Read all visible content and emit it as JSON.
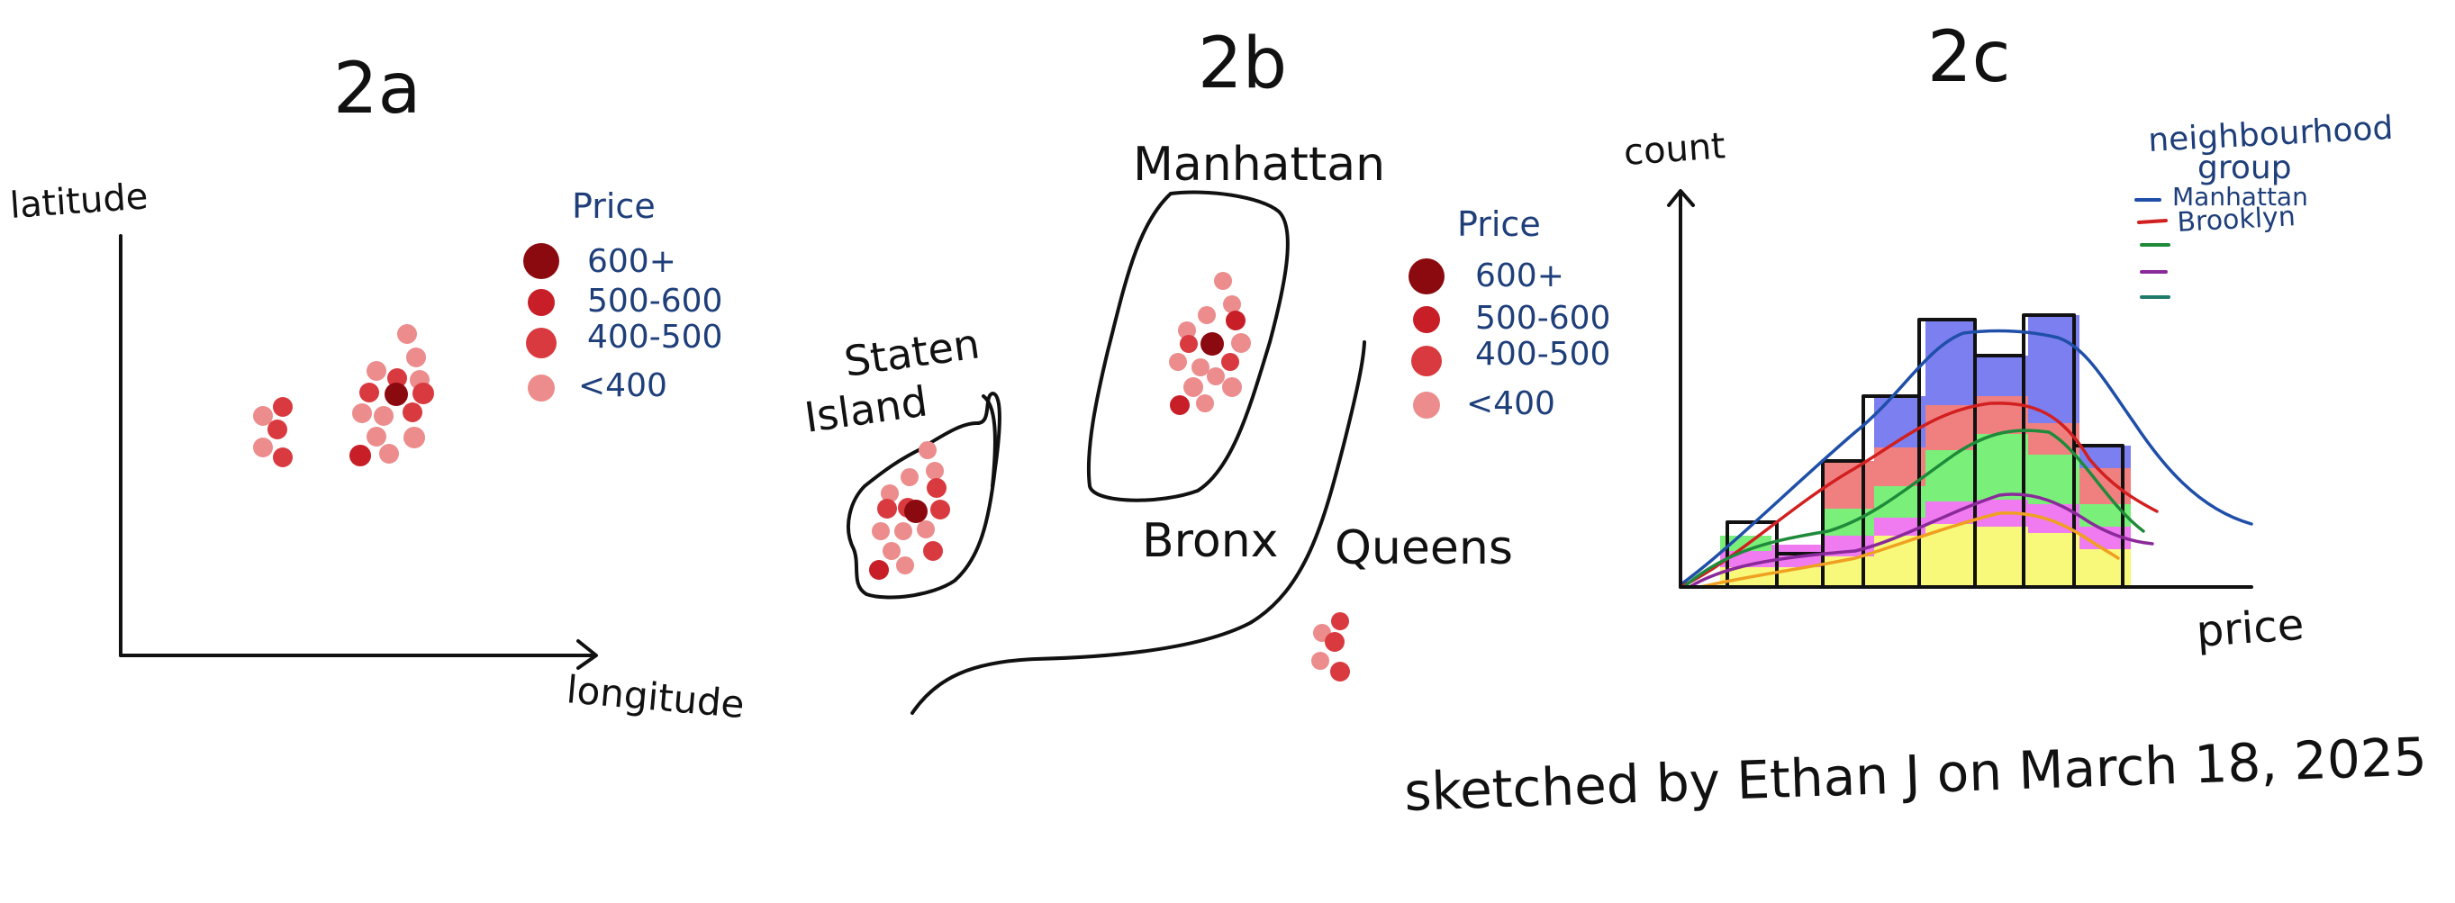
{
  "panel_2a": {
    "title": "2a",
    "ylabel": "latitude",
    "xlabel": "longitude",
    "legend": {
      "title": "Price",
      "items": [
        {
          "label": "600+",
          "color": "#8b0a10"
        },
        {
          "label": "500-600",
          "color": "#c81e28"
        },
        {
          "label": "400-500",
          "color": "#d93a3f"
        },
        {
          "label": "<400",
          "color": "#ec8c8c"
        }
      ]
    }
  },
  "panel_2b": {
    "title": "2b",
    "regions": {
      "manhattan": "Manhattan",
      "staten_line1": "Staten",
      "staten_line2": "Island",
      "bronx": "Bronx",
      "queens": "Queens"
    },
    "legend": {
      "title": "Price",
      "items": [
        {
          "label": "600+",
          "color": "#8b0a10"
        },
        {
          "label": "500-600",
          "color": "#c81e28"
        },
        {
          "label": "400-500",
          "color": "#d93a3f"
        },
        {
          "label": "<400",
          "color": "#ec8c8c"
        }
      ]
    }
  },
  "panel_2c": {
    "title": "2c",
    "ylabel": "count",
    "xlabel": "price",
    "legend": {
      "title_line1": "neighbourhood",
      "title_line2": "group",
      "items": [
        {
          "label": "Manhattan",
          "color": "#1f4fa8"
        },
        {
          "label": "Brooklyn",
          "color": "#d21f1f"
        },
        {
          "label": "",
          "color": "#1f8a3a"
        },
        {
          "label": "",
          "color": "#8a2a9a"
        },
        {
          "label": "",
          "color": "#1f7a6a"
        }
      ]
    }
  },
  "colors": {
    "dark_red": "#8b0a10",
    "red": "#c81e28",
    "mid_red": "#d93a3f",
    "light_red": "#ec8c8c",
    "blue_fill": "#7b7ff0",
    "salmon_fill": "#f08080",
    "green_fill": "#7af07a",
    "pink_fill": "#f07af0",
    "yellow_fill": "#f8f87a"
  },
  "credit": "sketched by Ethan J on March 18, 2025"
}
